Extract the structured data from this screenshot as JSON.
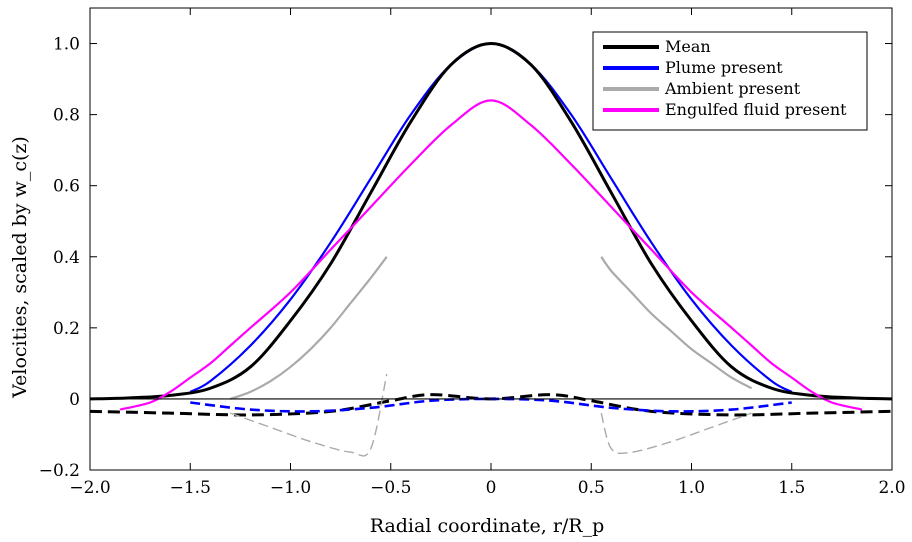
{
  "chart_data": {
    "type": "line",
    "xlabel": "Radial coordinate, r/R_p",
    "ylabel": "Velocities, scaled by w_c(z)",
    "xlim": [
      -2.0,
      2.0
    ],
    "ylim": [
      -0.2,
      1.1
    ],
    "xticks": [
      -2.0,
      -1.5,
      -1.0,
      -0.5,
      0,
      0.5,
      1.0,
      1.5,
      2.0
    ],
    "xtick_labels": [
      "−2.0",
      "−1.5",
      "−1.0",
      "−0.5",
      "0",
      "0.5",
      "1.0",
      "1.5",
      "2.0"
    ],
    "yticks": [
      -0.2,
      0,
      0.2,
      0.4,
      0.6,
      0.8,
      1.0
    ],
    "ytick_labels": [
      "−0.2",
      "0",
      "0.2",
      "0.4",
      "0.6",
      "0.8",
      "1.0"
    ],
    "grid": false,
    "legend_position": "top-right",
    "series": [
      {
        "name": "Mean",
        "color": "#000000",
        "x": [
          -2.0,
          -1.8,
          -1.6,
          -1.4,
          -1.2,
          -1.0,
          -0.8,
          -0.6,
          -0.4,
          -0.2,
          0,
          0.2,
          0.4,
          0.6,
          0.8,
          1.0,
          1.2,
          1.4,
          1.6,
          1.8,
          2.0
        ],
        "y": [
          0,
          0.003,
          0.01,
          0.03,
          0.09,
          0.22,
          0.38,
          0.58,
          0.78,
          0.94,
          1.0,
          0.94,
          0.78,
          0.58,
          0.38,
          0.22,
          0.09,
          0.03,
          0.01,
          0.003,
          0
        ]
      },
      {
        "name": "Plume present",
        "color": "#0000ff",
        "x": [
          -1.5,
          -1.4,
          -1.2,
          -1.0,
          -0.8,
          -0.6,
          -0.4,
          -0.2,
          0,
          0.2,
          0.4,
          0.6,
          0.8,
          1.0,
          1.2,
          1.4,
          1.5
        ],
        "y": [
          0.02,
          0.05,
          0.15,
          0.28,
          0.44,
          0.62,
          0.8,
          0.94,
          1.0,
          0.94,
          0.8,
          0.62,
          0.44,
          0.28,
          0.15,
          0.05,
          0.02
        ]
      },
      {
        "name": "Ambient present",
        "color": "#aaaaaa",
        "segments": [
          {
            "x": [
              -1.3,
              -1.2,
              -1.1,
              -1.0,
              -0.9,
              -0.8,
              -0.7,
              -0.6,
              -0.52
            ],
            "y": [
              0.0,
              0.02,
              0.05,
              0.09,
              0.14,
              0.2,
              0.27,
              0.34,
              0.4
            ]
          },
          {
            "x": [
              0.55,
              0.6,
              0.7,
              0.8,
              0.9,
              1.0,
              1.1,
              1.2,
              1.3
            ],
            "y": [
              0.4,
              0.36,
              0.3,
              0.24,
              0.19,
              0.14,
              0.1,
              0.06,
              0.03
            ]
          }
        ]
      },
      {
        "name": "Engulfed fluid present",
        "color": "#ff00ff",
        "x": [
          -1.85,
          -1.7,
          -1.6,
          -1.5,
          -1.4,
          -1.3,
          -1.2,
          -1.0,
          -0.8,
          -0.6,
          -0.4,
          -0.2,
          0,
          0.2,
          0.4,
          0.6,
          0.8,
          1.0,
          1.2,
          1.3,
          1.4,
          1.5,
          1.6,
          1.7,
          1.85
        ],
        "y": [
          -0.03,
          -0.01,
          0.02,
          0.06,
          0.1,
          0.15,
          0.2,
          0.3,
          0.42,
          0.54,
          0.66,
          0.77,
          0.84,
          0.77,
          0.66,
          0.54,
          0.42,
          0.3,
          0.2,
          0.15,
          0.1,
          0.06,
          0.02,
          -0.01,
          -0.03
        ]
      }
    ],
    "dashed_series": [
      {
        "color": "#000000",
        "x": [
          -2.0,
          -1.6,
          -1.2,
          -0.8,
          -0.5,
          -0.3,
          0,
          0.3,
          0.5,
          0.8,
          1.2,
          1.6,
          2.0
        ],
        "y": [
          -0.035,
          -0.04,
          -0.045,
          -0.035,
          -0.005,
          0.012,
          0.0,
          0.012,
          -0.005,
          -0.035,
          -0.045,
          -0.04,
          -0.035
        ]
      },
      {
        "color": "#0000ff",
        "x": [
          -1.5,
          -1.2,
          -0.9,
          -0.6,
          -0.3,
          0,
          0.3,
          0.6,
          0.9,
          1.2,
          1.5
        ],
        "y": [
          -0.01,
          -0.03,
          -0.035,
          -0.025,
          -0.005,
          0.0,
          -0.005,
          -0.025,
          -0.035,
          -0.03,
          -0.01
        ]
      },
      {
        "color": "#aaaaaa",
        "segments": [
          {
            "x": [
              -1.3,
              -1.1,
              -0.9,
              -0.7,
              -0.6,
              -0.52
            ],
            "y": [
              -0.04,
              -0.08,
              -0.12,
              -0.15,
              -0.14,
              0.07
            ]
          },
          {
            "x": [
              0.55,
              0.6,
              0.7,
              0.9,
              1.1,
              1.3
            ],
            "y": [
              -0.04,
              -0.14,
              -0.15,
              -0.12,
              -0.08,
              -0.04
            ]
          }
        ]
      }
    ]
  }
}
